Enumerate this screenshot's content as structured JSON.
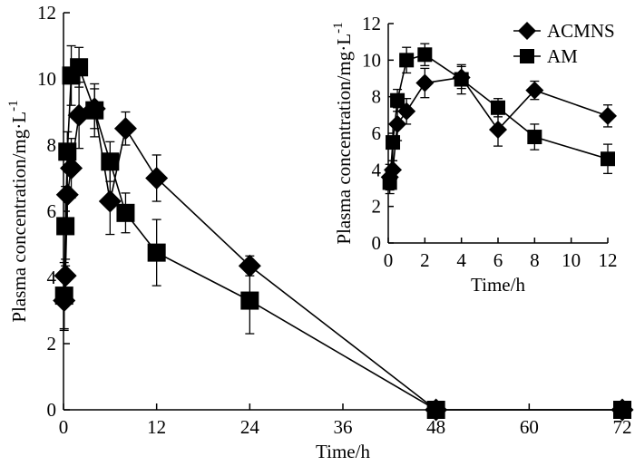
{
  "chart_data": [
    {
      "id": "main",
      "type": "line",
      "xlabel": "Time/h",
      "ylabel": "Plasma concentration/mg·L",
      "ylabel_sup": "-1",
      "xlim": [
        0,
        72
      ],
      "ylim": [
        0,
        12
      ],
      "xticks": [
        0,
        12,
        24,
        36,
        48,
        60,
        72
      ],
      "yticks": [
        0,
        2,
        4,
        6,
        8,
        10,
        12
      ],
      "series": [
        {
          "name": "ACMNS",
          "marker": "diamond",
          "x": [
            0.083,
            0.25,
            0.5,
            1,
            2,
            4,
            6,
            8,
            12,
            24,
            48,
            72
          ],
          "y": [
            3.3,
            4.05,
            6.5,
            7.3,
            8.9,
            9.1,
            6.3,
            8.5,
            7.0,
            4.35,
            0,
            0
          ],
          "err": [
            0.9,
            0.5,
            0.9,
            0.9,
            1.0,
            0.6,
            1.0,
            0.5,
            0.7,
            0.3,
            0,
            0
          ]
        },
        {
          "name": "AM",
          "marker": "square",
          "x": [
            0.083,
            0.25,
            0.5,
            1,
            2,
            4,
            6,
            8,
            12,
            24,
            48,
            72
          ],
          "y": [
            3.45,
            5.55,
            7.8,
            10.1,
            10.35,
            9.05,
            7.5,
            5.95,
            4.75,
            3.3,
            0,
            0
          ],
          "err": [
            1.0,
            1.2,
            0.6,
            0.9,
            0.6,
            0.8,
            0.6,
            0.6,
            1.0,
            1.0,
            0,
            0
          ]
        }
      ]
    },
    {
      "id": "inset",
      "type": "line",
      "xlabel": "Time/h",
      "ylabel": "Plasma concentration/mg·L",
      "ylabel_sup": "-1",
      "xlim": [
        0,
        12
      ],
      "ylim": [
        0,
        12
      ],
      "xticks": [
        0,
        2,
        4,
        6,
        8,
        10,
        12
      ],
      "yticks": [
        0,
        2,
        4,
        6,
        8,
        10,
        12
      ],
      "legend": [
        "ACMNS",
        "AM"
      ],
      "series": [
        {
          "name": "ACMNS",
          "marker": "diamond",
          "x": [
            0.083,
            0.25,
            0.5,
            1,
            2,
            4,
            6,
            8,
            12
          ],
          "y": [
            3.6,
            4.0,
            6.5,
            7.2,
            8.75,
            9.05,
            6.2,
            8.35,
            6.95
          ],
          "err": [
            0.7,
            0.5,
            0.9,
            0.7,
            0.8,
            0.6,
            0.9,
            0.5,
            0.6
          ]
        },
        {
          "name": "AM",
          "marker": "square",
          "x": [
            0.083,
            0.25,
            0.5,
            1,
            2,
            4,
            6,
            8,
            12
          ],
          "y": [
            3.3,
            5.5,
            7.8,
            10.0,
            10.3,
            8.95,
            7.4,
            5.8,
            4.6
          ],
          "err": [
            0.6,
            1.0,
            0.6,
            0.7,
            0.6,
            0.8,
            0.5,
            0.7,
            0.8
          ]
        }
      ]
    }
  ]
}
